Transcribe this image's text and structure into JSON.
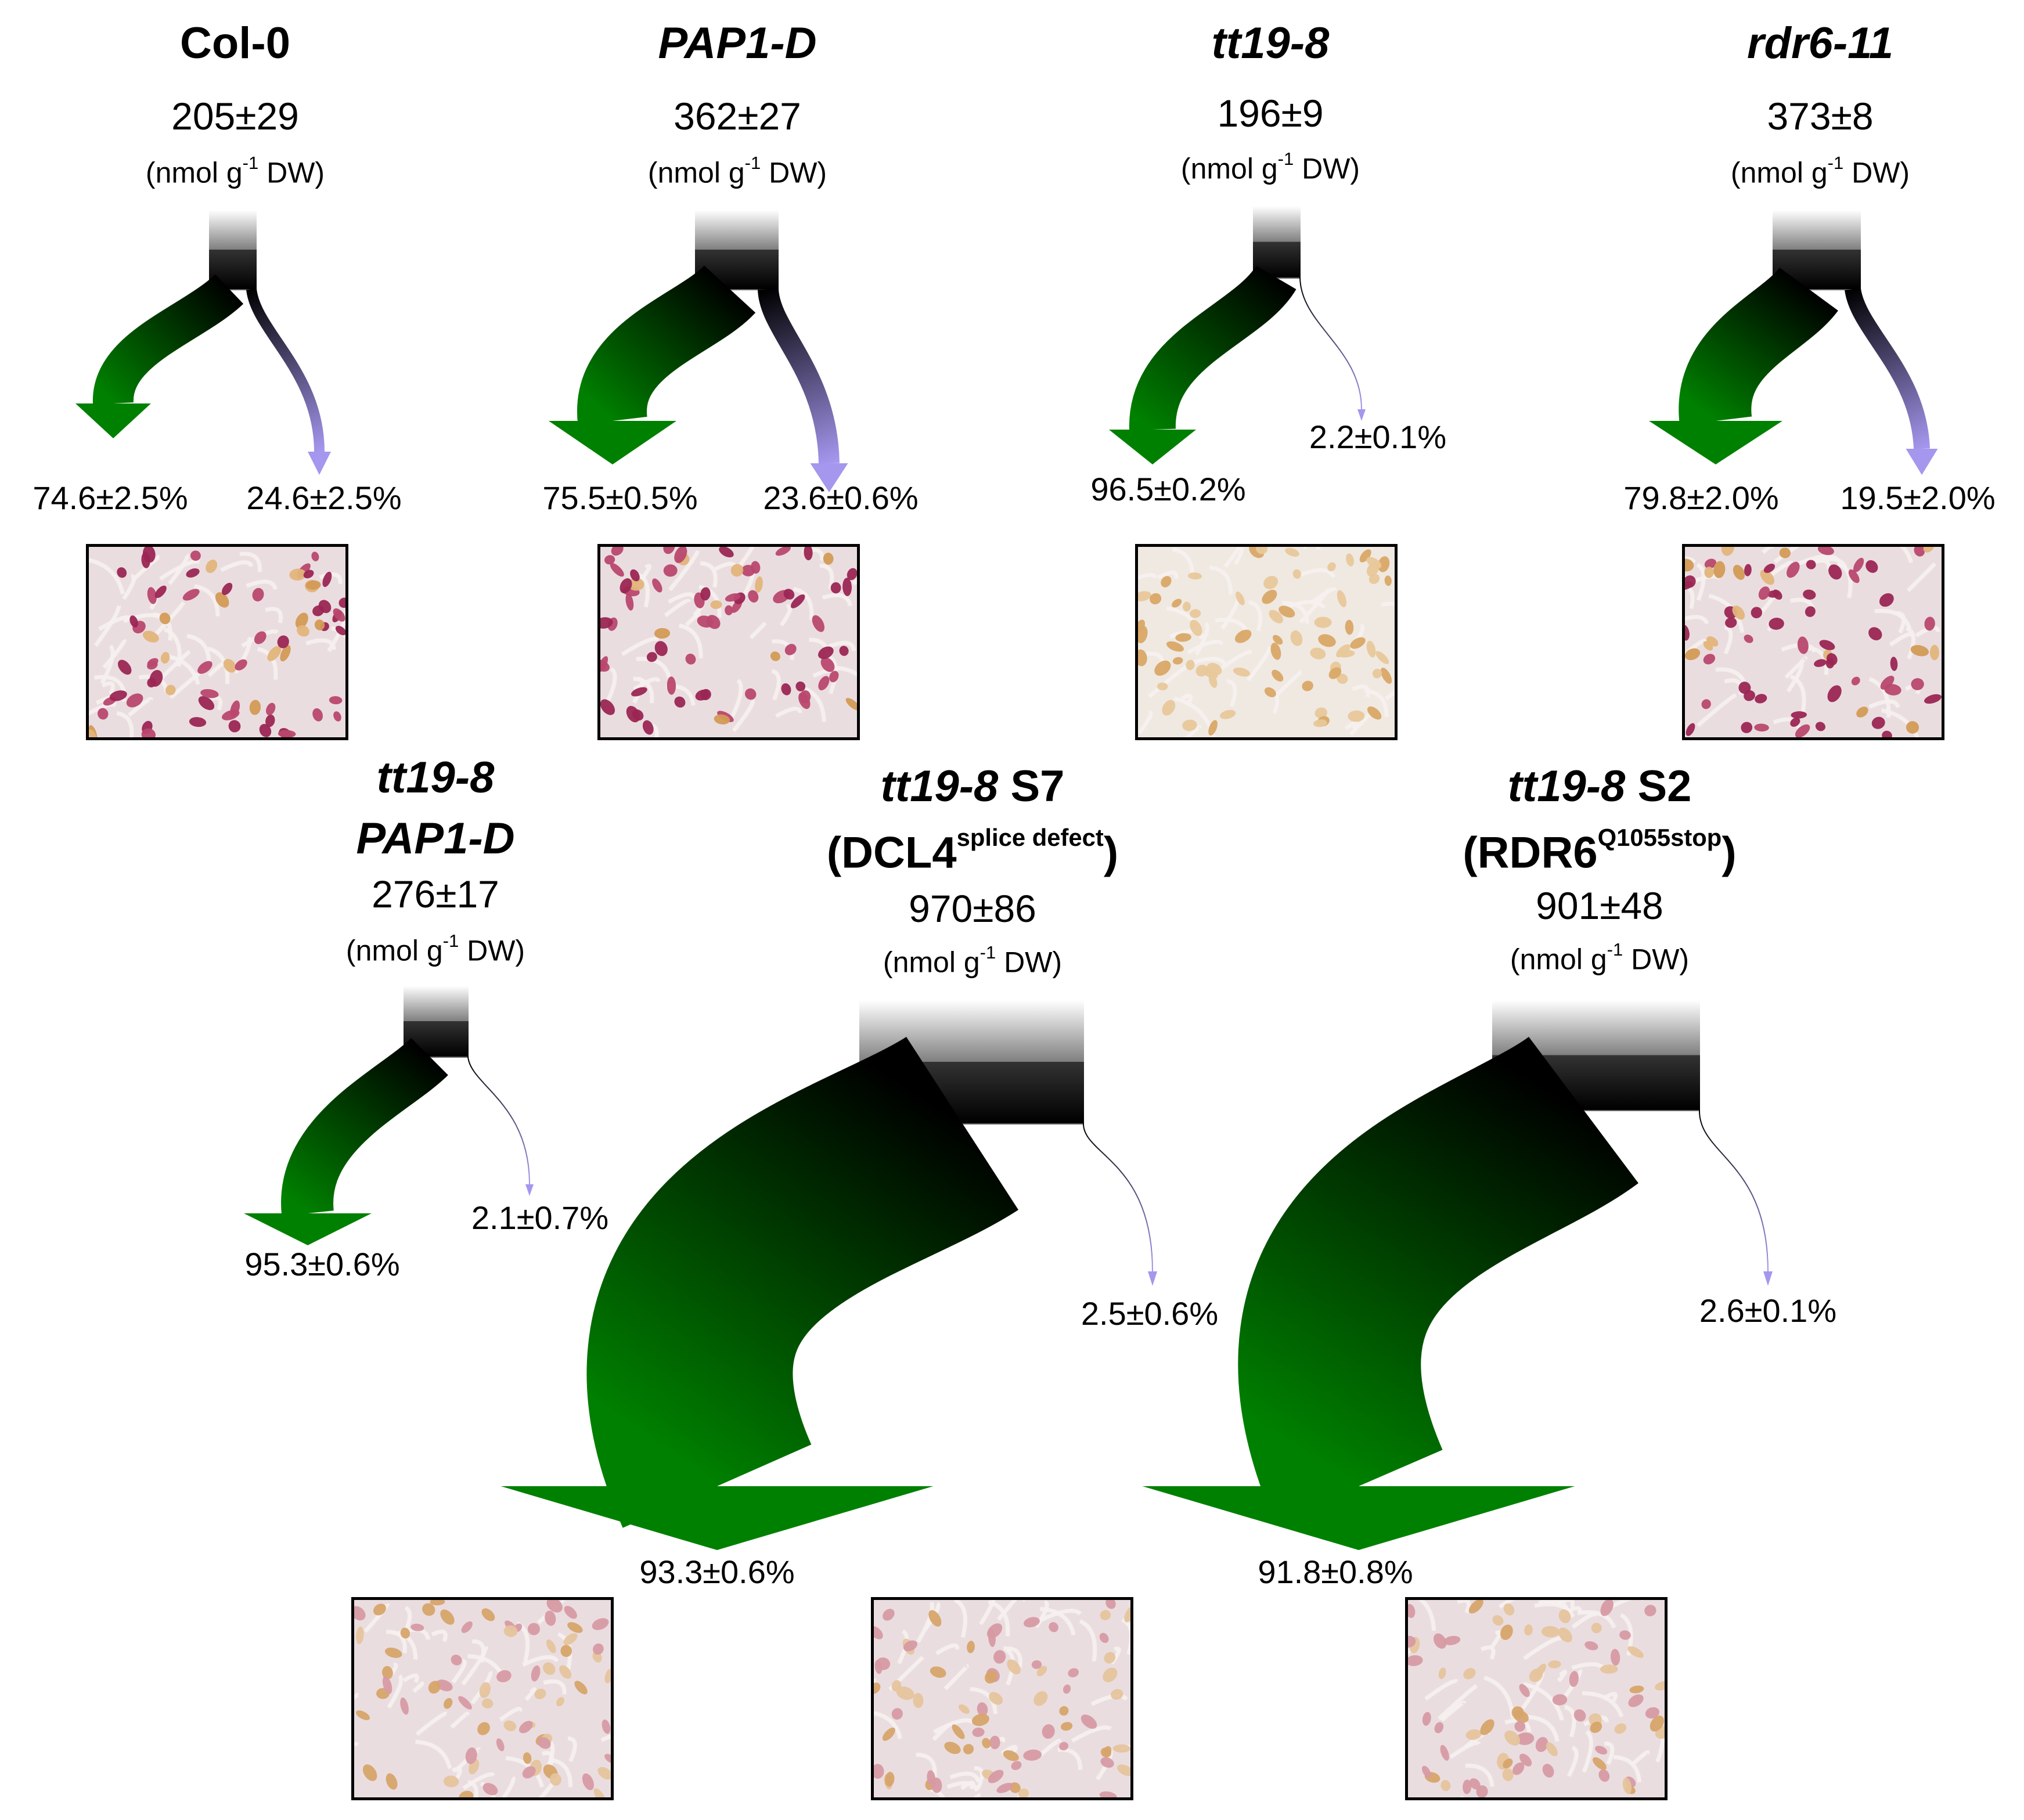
{
  "panels": [
    {
      "id": "col0",
      "title": [
        {
          "text": "Col-0",
          "italic": false
        }
      ],
      "total": "205±29",
      "unit": {
        "pre": "(nmol g",
        "sup": "-1",
        "post": " DW)"
      },
      "green_pct": "74.6±2.5%",
      "purple_pct": "24.6±2.5%",
      "green_fraction": 0.746,
      "purple_fraction": 0.246,
      "photo": {
        "tone": "red",
        "pigment": 0.7
      }
    },
    {
      "id": "pap1d",
      "title": [
        {
          "text": "PAP1-D",
          "italic": true
        }
      ],
      "total": "362±27",
      "unit": {
        "pre": "(nmol g",
        "sup": "-1",
        "post": " DW)"
      },
      "green_pct": "75.5±0.5%",
      "purple_pct": "23.6±0.6%",
      "green_fraction": 0.755,
      "purple_fraction": 0.236,
      "photo": {
        "tone": "red",
        "pigment": 0.85
      }
    },
    {
      "id": "tt198",
      "title": [
        {
          "text": "tt19-8",
          "italic": true
        }
      ],
      "total": "196±9",
      "unit": {
        "pre": "(nmol g",
        "sup": "-1",
        "post": " DW)"
      },
      "green_pct": "96.5±0.2%",
      "purple_pct": "2.2±0.1%",
      "green_fraction": 0.965,
      "purple_fraction": 0.022,
      "photo": {
        "tone": "pale",
        "pigment": 0.05
      }
    },
    {
      "id": "rdr611",
      "title": [
        {
          "text": "rdr6-11",
          "italic": true
        }
      ],
      "total": "373±8",
      "unit": {
        "pre": "(nmol g",
        "sup": "-1",
        "post": " DW)"
      },
      "green_pct": "79.8±2.0%",
      "purple_pct": "19.5±2.0%",
      "green_fraction": 0.798,
      "purple_fraction": 0.195,
      "photo": {
        "tone": "red",
        "pigment": 0.75
      }
    },
    {
      "id": "tt198pap1d",
      "title": [
        {
          "text": "tt19-8",
          "italic": true
        },
        {
          "text": "PAP1-D",
          "italic": true
        }
      ],
      "total": "276±17",
      "unit": {
        "pre": "(nmol g",
        "sup": "-1",
        "post": " DW)"
      },
      "green_pct": "95.3±0.6%",
      "purple_pct": "2.1±0.7%",
      "green_fraction": 0.953,
      "purple_fraction": 0.021,
      "photo": {
        "tone": "pink",
        "pigment": 0.3
      }
    },
    {
      "id": "tt198s7",
      "title": [
        {
          "text": "tt19-8",
          "italic": true,
          "after": " S7"
        },
        {
          "text": "(DCL4",
          "italic": false,
          "sup": "splice defect",
          "after": ")"
        }
      ],
      "total": "970±86",
      "unit": {
        "pre": "(nmol g",
        "sup": "-1",
        "post": " DW)"
      },
      "green_pct": "93.3±0.6%",
      "purple_pct": "2.5±0.6%",
      "green_fraction": 0.933,
      "purple_fraction": 0.025,
      "photo": {
        "tone": "pink",
        "pigment": 0.4
      }
    },
    {
      "id": "tt198s2",
      "title": [
        {
          "text": "tt19-8",
          "italic": true,
          "after": " S2"
        },
        {
          "text": "(RDR6",
          "italic": false,
          "sup": "Q1055stop",
          "after": ")"
        }
      ],
      "total": "901±48",
      "unit": {
        "pre": "(nmol g",
        "sup": "-1",
        "post": " DW)"
      },
      "green_pct": "91.8±0.8%",
      "purple_pct": "2.6±0.1%",
      "green_fraction": 0.918,
      "purple_fraction": 0.026,
      "photo": {
        "tone": "pink",
        "pigment": 0.4
      }
    }
  ],
  "colors": {
    "green": "#008000",
    "purple": "#a596ee",
    "source": "#000000"
  }
}
